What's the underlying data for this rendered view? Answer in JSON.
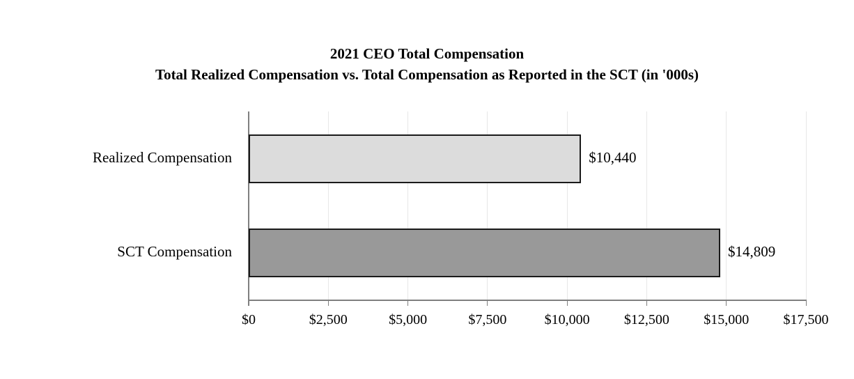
{
  "title": {
    "line1": "2021 CEO Total Compensation",
    "line2": "Total Realized Compensation vs. Total Compensation as Reported in the SCT (in '000s)"
  },
  "chart_data": {
    "type": "bar",
    "orientation": "horizontal",
    "title": "2021 CEO Total Compensation — Total Realized Compensation vs. Total Compensation as Reported in the SCT (in '000s)",
    "categories": [
      "Realized Compensation",
      "SCT Compensation"
    ],
    "values": [
      10440,
      14809
    ],
    "data_labels": [
      "$10,440",
      "$14,809"
    ],
    "xlim": [
      0,
      17500
    ],
    "x_ticks": [
      0,
      2500,
      5000,
      7500,
      10000,
      12500,
      15000,
      17500
    ],
    "x_tick_labels": [
      "$0",
      "$2,500",
      "$5,000",
      "$7,500",
      "$10,000",
      "$12,500",
      "$15,000",
      "$17,500"
    ],
    "grid": true,
    "legend": "none",
    "colors": {
      "bar_fills": [
        "#dcdcdc",
        "#999999"
      ],
      "bar_border": "#1a1a1a",
      "axis": "#7f7f7f",
      "gridline": "#e7e7e7",
      "text": "#000000",
      "background": "#ffffff"
    }
  }
}
